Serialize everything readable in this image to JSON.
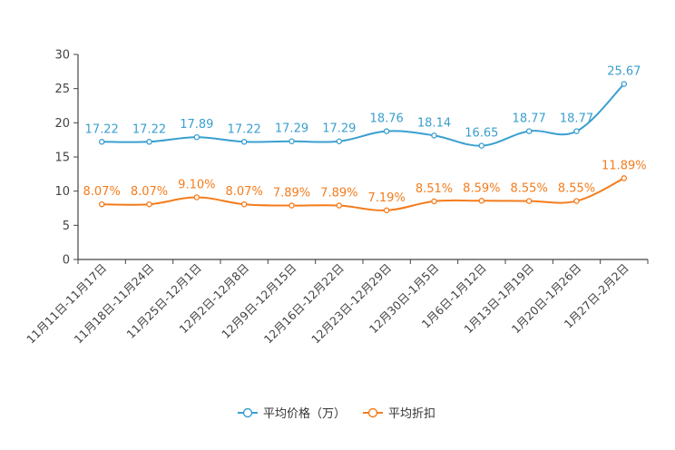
{
  "chart_data": {
    "type": "line",
    "title": "",
    "xlabel": "",
    "ylabel": "",
    "ylim": [
      0,
      30
    ],
    "yticks": [
      0,
      5,
      10,
      15,
      20,
      25,
      30
    ],
    "grid": false,
    "legend_position": "bottom-center",
    "categories": [
      "11月11日-11月17日",
      "11月18日-11月24日",
      "11月25日-12月1日",
      "12月2日-12月8日",
      "12月9日-12月15日",
      "12月16日-12月22日",
      "12月23日-12月29日",
      "12月30日-1月5日",
      "1月6日-1月12日",
      "1月13日-1月19日",
      "1月20日-1月26日",
      "1月27日-2月2日"
    ],
    "series": [
      {
        "name": "平均价格（万）",
        "color": "#3a9fcf",
        "values": [
          17.22,
          17.22,
          17.89,
          17.22,
          17.29,
          17.29,
          18.76,
          18.14,
          16.65,
          18.77,
          18.77,
          25.67
        ],
        "labels": [
          "17.22",
          "17.22",
          "17.89",
          "17.22",
          "17.29",
          "17.29",
          "18.76",
          "18.14",
          "16.65",
          "18.77",
          "18.77",
          "25.67"
        ]
      },
      {
        "name": "平均折扣",
        "color": "#f47c1d",
        "values": [
          8.07,
          8.07,
          9.1,
          8.07,
          7.89,
          7.89,
          7.19,
          8.51,
          8.59,
          8.55,
          8.55,
          11.89
        ],
        "labels": [
          "8.07%",
          "8.07%",
          "9.10%",
          "8.07%",
          "7.89%",
          "7.89%",
          "7.19%",
          "8.51%",
          "8.59%",
          "8.55%",
          "8.55%",
          "11.89%"
        ]
      }
    ]
  }
}
